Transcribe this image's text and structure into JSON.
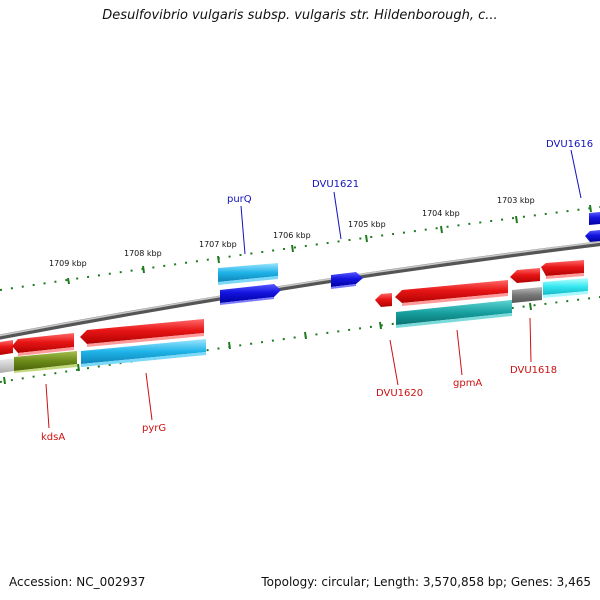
{
  "title": "Desulfovibrio vulgaris subsp. vulgaris str. Hildenborough, c...",
  "footer": {
    "accession": "Accession: NC_002937",
    "summary": "Topology: circular; Length: 3,570,858 bp; Genes: 3,465"
  },
  "scale_labels": [
    "1709 kbp",
    "1708 kbp",
    "1707 kbp",
    "1706 kbp",
    "1705 kbp",
    "1704 kbp",
    "1703 kbp"
  ],
  "gene_labels": {
    "top": [
      "purQ",
      "DVU1621",
      "DVU1616"
    ],
    "bottom": [
      "kdsA",
      "pyrG",
      "DVU1620",
      "gpmA",
      "DVU1618"
    ]
  },
  "colors": {
    "forward_gene": "#1a1adc",
    "reverse_gene": "#e21414",
    "forward_label": "#1212c0",
    "reverse_label": "#cc1111",
    "cds_cyan": "#20b8e8",
    "cds_teal": "#20a8a8",
    "cds_olive": "#6f8a1a",
    "tick_green": "#1f7a1f",
    "backbone": "#777777"
  }
}
